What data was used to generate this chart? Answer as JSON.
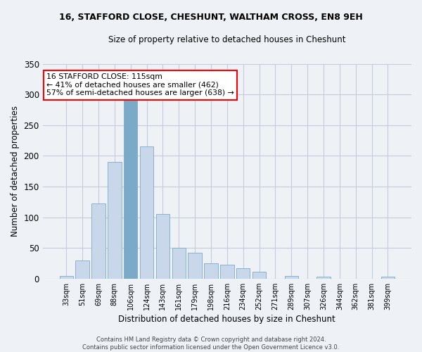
{
  "title": "16, STAFFORD CLOSE, CHESHUNT, WALTHAM CROSS, EN8 9EH",
  "subtitle": "Size of property relative to detached houses in Cheshunt",
  "xlabel": "Distribution of detached houses by size in Cheshunt",
  "ylabel": "Number of detached properties",
  "bar_color": "#c8d8ea",
  "bar_edge_color": "#7aaac8",
  "categories": [
    "33sqm",
    "51sqm",
    "69sqm",
    "88sqm",
    "106sqm",
    "124sqm",
    "143sqm",
    "161sqm",
    "179sqm",
    "198sqm",
    "216sqm",
    "234sqm",
    "252sqm",
    "271sqm",
    "289sqm",
    "307sqm",
    "326sqm",
    "344sqm",
    "362sqm",
    "381sqm",
    "399sqm"
  ],
  "values": [
    4,
    30,
    122,
    190,
    295,
    215,
    105,
    50,
    42,
    25,
    23,
    17,
    11,
    0,
    4,
    0,
    3,
    0,
    0,
    0,
    3
  ],
  "ylim": [
    0,
    350
  ],
  "annotation_text": "16 STAFFORD CLOSE: 115sqm\n← 41% of detached houses are smaller (462)\n57% of semi-detached houses are larger (638) →",
  "highlight_bar_index": 4,
  "highlight_bar_color": "#7aaac8",
  "footer_text": "Contains HM Land Registry data © Crown copyright and database right 2024.\nContains public sector information licensed under the Open Government Licence v3.0.",
  "bg_color": "#eef2f7",
  "plot_bg_color": "#eef2f7",
  "grid_color": "#c5cdd8"
}
